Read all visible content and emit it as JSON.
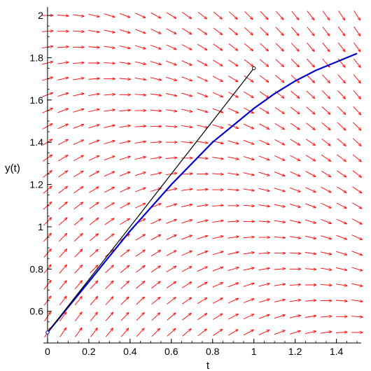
{
  "chart_data": {
    "type": "line",
    "title": "",
    "xlabel": "t",
    "ylabel": "y(t)",
    "xlim": [
      -0.02,
      1.52
    ],
    "ylim": [
      0.45,
      2.04
    ],
    "x_ticks": [
      {
        "value": 0,
        "label": "0"
      },
      {
        "value": 0.2,
        "label": "0.2"
      },
      {
        "value": 0.4,
        "label": "0.4"
      },
      {
        "value": 0.6,
        "label": "0.6"
      },
      {
        "value": 0.8,
        "label": "0.8"
      },
      {
        "value": 1,
        "label": "1"
      },
      {
        "value": 1.2,
        "label": "1.2"
      },
      {
        "value": 1.4,
        "label": "1.4"
      }
    ],
    "y_ticks": [
      {
        "value": 0.6,
        "label": "0.6"
      },
      {
        "value": 0.8,
        "label": "0.8"
      },
      {
        "value": 1,
        "label": "1"
      },
      {
        "value": 1.2,
        "label": "1.2"
      },
      {
        "value": 1.4,
        "label": "1.4"
      },
      {
        "value": 1.6,
        "label": "1.6"
      },
      {
        "value": 1.8,
        "label": "1.8"
      },
      {
        "value": 2,
        "label": "2"
      }
    ],
    "direction_field": {
      "color": "#ff0000",
      "t_values": [
        0,
        0.075,
        0.15,
        0.225,
        0.3,
        0.375,
        0.45,
        0.525,
        0.6,
        0.675,
        0.75,
        0.825,
        0.9,
        0.975,
        1.05,
        1.125,
        1.2,
        1.275,
        1.35,
        1.425,
        1.5
      ],
      "y_values": [
        0.5,
        0.575,
        0.65,
        0.725,
        0.8,
        0.875,
        0.95,
        1.025,
        1.1,
        1.175,
        1.25,
        1.325,
        1.4,
        1.475,
        1.55,
        1.625,
        1.7,
        1.775,
        1.85,
        1.925,
        2.0
      ]
    },
    "series": [
      {
        "color": "#0000cc",
        "x": [
          0,
          0.1,
          0.2,
          0.3,
          0.4,
          0.5,
          0.6,
          0.7,
          0.8,
          0.9,
          1.0,
          1.1,
          1.2,
          1.3,
          1.4,
          1.5
        ],
        "y": [
          0.5,
          0.62,
          0.74,
          0.86,
          0.98,
          1.09,
          1.2,
          1.3,
          1.4,
          1.48,
          1.56,
          1.63,
          1.69,
          1.74,
          1.78,
          1.82
        ]
      },
      {
        "color": "#000000",
        "x": [
          0,
          0.5,
          1.0
        ],
        "y": [
          0.5,
          1.125,
          1.75
        ],
        "markers": [
          {
            "x": 0,
            "y": 0.5,
            "color": "#0000cc"
          },
          {
            "x": 1.0,
            "y": 1.75,
            "color": "#000000"
          }
        ]
      }
    ]
  }
}
